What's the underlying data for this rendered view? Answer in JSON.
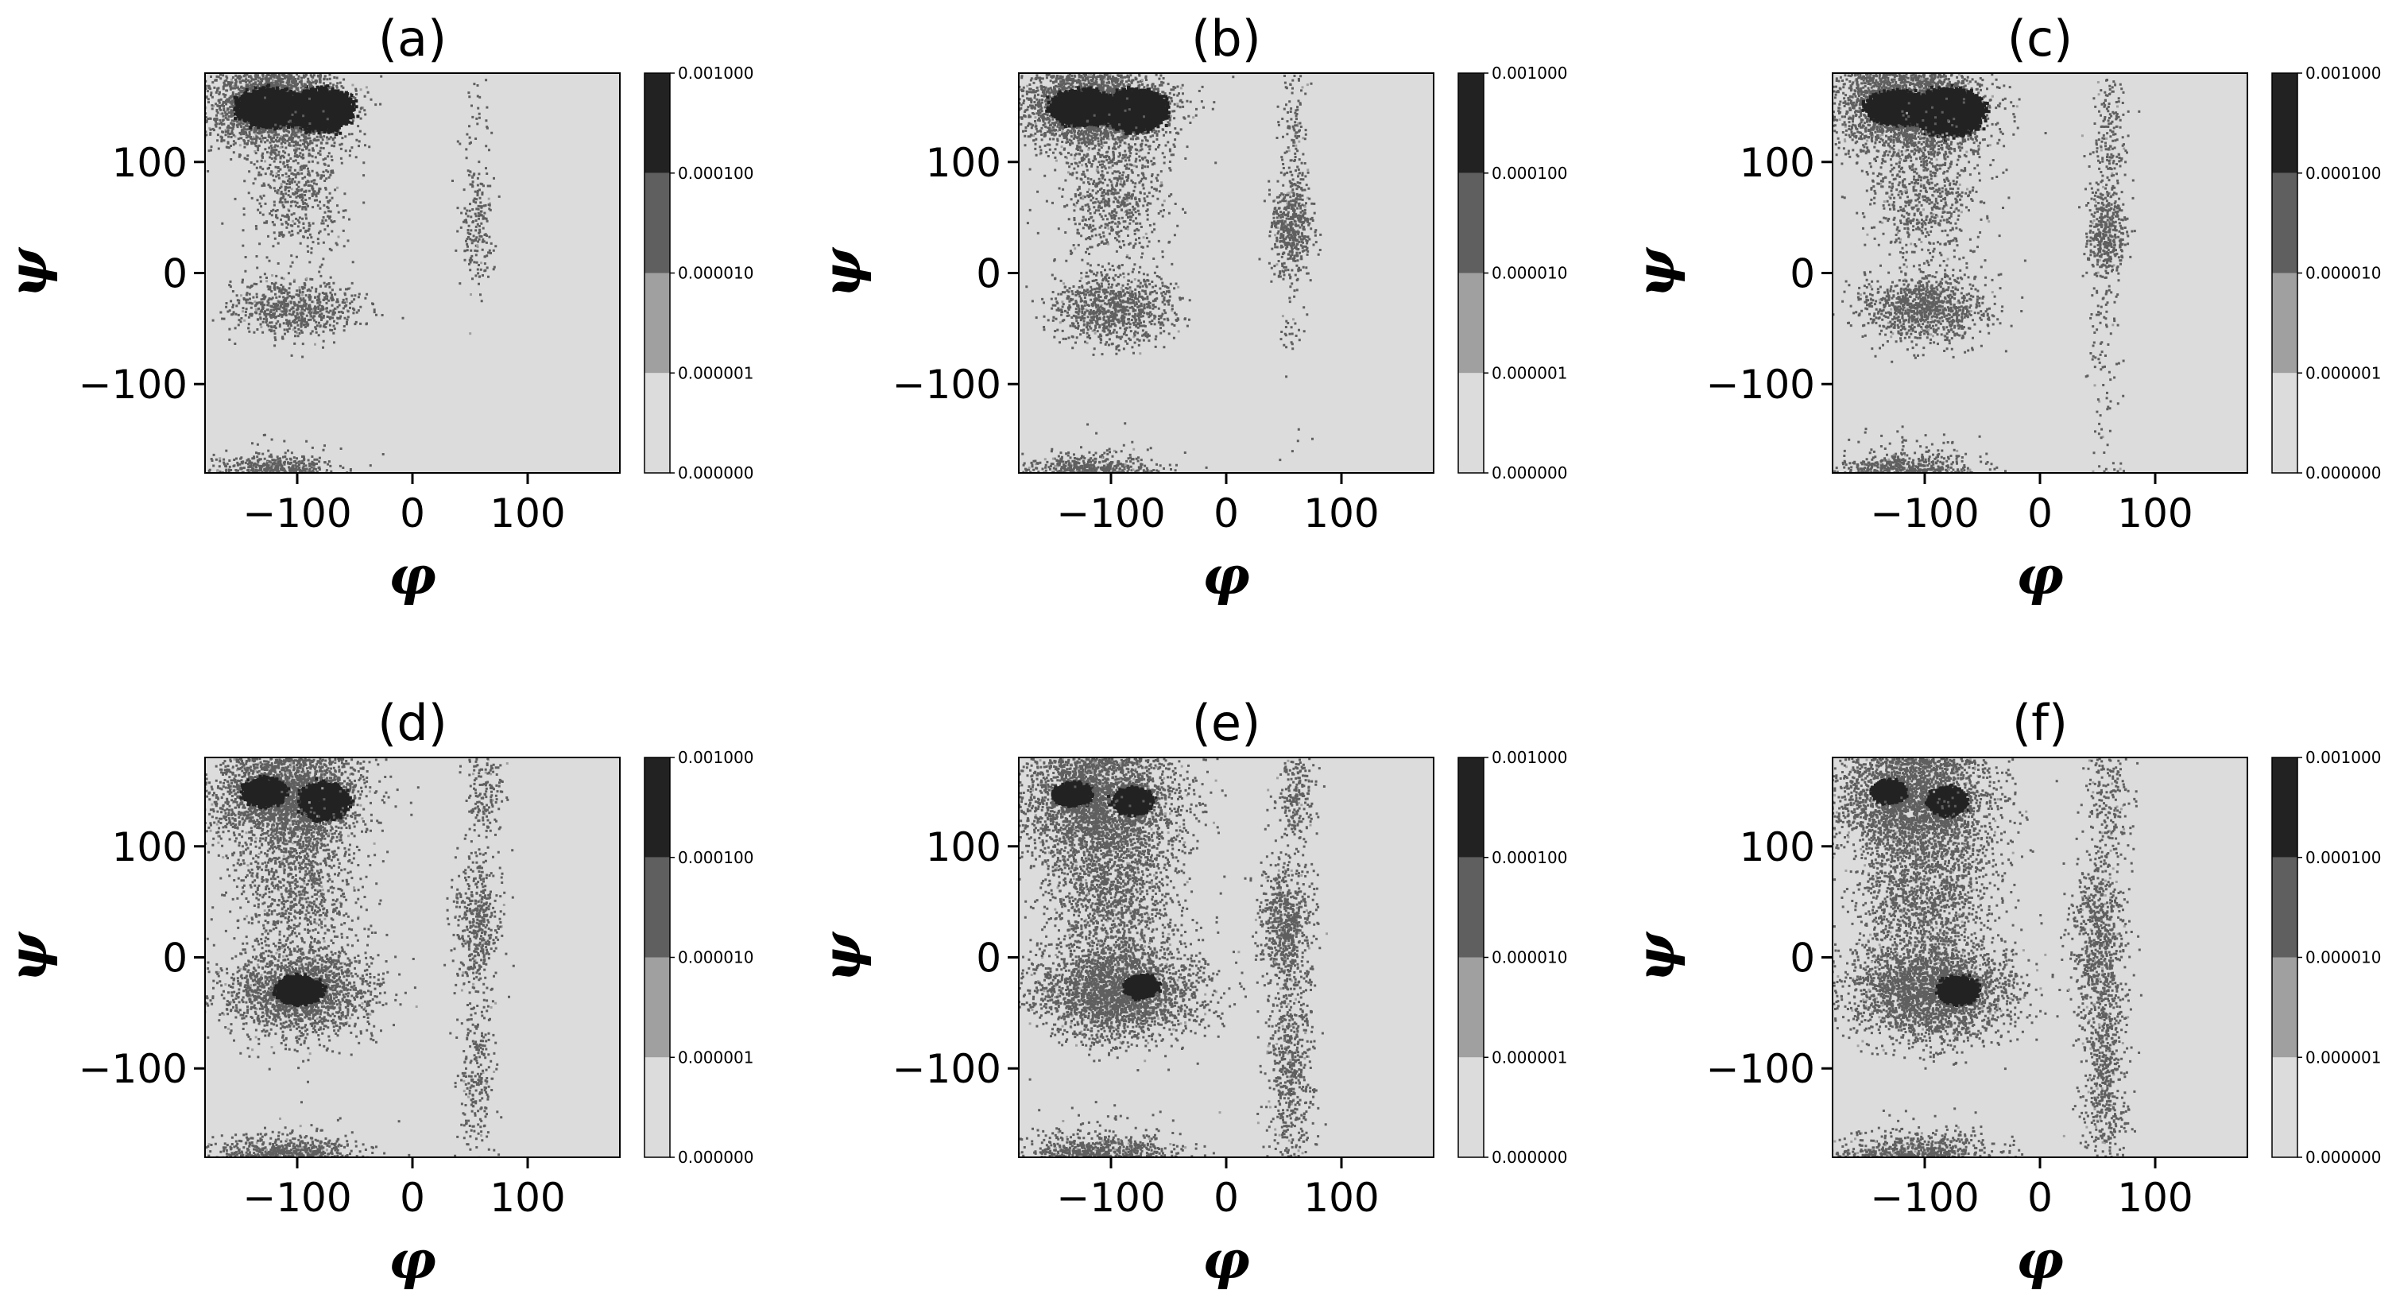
{
  "colors": {
    "background_level": "#dcdcdc",
    "level_1": "#a0a0a0",
    "level_2": "#5f5f5f",
    "level_3": "#222222",
    "frame": "#000000"
  },
  "chart_data": [
    {
      "type": "heatmap",
      "title": "(a)",
      "xlabel": "φ",
      "ylabel": "ψ",
      "xlim": [
        -180,
        180
      ],
      "ylim": [
        -180,
        180
      ],
      "xticks": [
        -100,
        0,
        100
      ],
      "yticks": [
        -100,
        0,
        100
      ],
      "xtick_labels": [
        "−100",
        "0",
        "100"
      ],
      "ytick_labels": [
        "−100",
        "0",
        "100"
      ],
      "colorbar": {
        "scale": "log",
        "levels": [
          0.0,
          1e-06,
          1e-05,
          0.0001,
          0.001
        ],
        "labels": [
          "0.000000",
          "0.000001",
          "0.000010",
          "0.000100",
          "0.001000"
        ]
      },
      "regions": [
        {
          "phi": -120,
          "psi": 150,
          "sphi": 30,
          "spsi": 20,
          "n": 2600,
          "core": [
            {
              "phi": -125,
              "psi": 150,
              "rx": 28,
              "ry": 16
            },
            {
              "phi": -80,
              "psi": 148,
              "rx": 26,
              "ry": 18
            }
          ]
        },
        {
          "phi": -100,
          "psi": 75,
          "sphi": 20,
          "spsi": 30,
          "n": 500
        },
        {
          "phi": -105,
          "psi": -30,
          "sphi": 28,
          "spsi": 14,
          "n": 700
        },
        {
          "phi": -120,
          "psi": -175,
          "sphi": 25,
          "spsi": 6,
          "n": 260
        },
        {
          "phi": 55,
          "psi": 40,
          "sphi": 8,
          "spsi": 28,
          "n": 170
        },
        {
          "phi": 55,
          "psi": 110,
          "sphi": 6,
          "spsi": 40,
          "n": 50
        }
      ]
    },
    {
      "type": "heatmap",
      "title": "(b)",
      "xlabel": "φ",
      "ylabel": "ψ",
      "xlim": [
        -180,
        180
      ],
      "ylim": [
        -180,
        180
      ],
      "xticks": [
        -100,
        0,
        100
      ],
      "yticks": [
        -100,
        0,
        100
      ],
      "xtick_labels": [
        "−100",
        "0",
        "100"
      ],
      "ytick_labels": [
        "−100",
        "0",
        "100"
      ],
      "colorbar": {
        "scale": "log",
        "levels": [
          0.0,
          1e-06,
          1e-05,
          0.0001,
          0.001
        ],
        "labels": [
          "0.000000",
          "0.000001",
          "0.000010",
          "0.000100",
          "0.001000"
        ]
      },
      "regions": [
        {
          "phi": -115,
          "psi": 150,
          "sphi": 32,
          "spsi": 20,
          "n": 2800,
          "core": [
            {
              "phi": -125,
              "psi": 150,
              "rx": 28,
              "ry": 15
            },
            {
              "phi": -80,
              "psi": 148,
              "rx": 26,
              "ry": 18
            }
          ]
        },
        {
          "phi": -100,
          "psi": 70,
          "sphi": 24,
          "spsi": 32,
          "n": 700
        },
        {
          "phi": -100,
          "psi": -32,
          "sphi": 28,
          "spsi": 16,
          "n": 900
        },
        {
          "phi": -120,
          "psi": -175,
          "sphi": 26,
          "spsi": 6,
          "n": 300
        },
        {
          "phi": 55,
          "psi": 40,
          "sphi": 9,
          "spsi": 18,
          "n": 420
        },
        {
          "phi": 58,
          "psi": 100,
          "sphi": 7,
          "spsi": 50,
          "n": 200
        },
        {
          "phi": 55,
          "psi": -40,
          "sphi": 6,
          "spsi": 30,
          "n": 40
        }
      ]
    },
    {
      "type": "heatmap",
      "title": "(c)",
      "xlabel": "φ",
      "ylabel": "ψ",
      "xlim": [
        -180,
        180
      ],
      "ylim": [
        -180,
        180
      ],
      "xticks": [
        -100,
        0,
        100
      ],
      "yticks": [
        -100,
        0,
        100
      ],
      "xtick_labels": [
        "−100",
        "0",
        "100"
      ],
      "ytick_labels": [
        "−100",
        "0",
        "100"
      ],
      "colorbar": {
        "scale": "log",
        "levels": [
          0.0,
          1e-06,
          1e-05,
          0.0001,
          0.001
        ],
        "labels": [
          "0.000000",
          "0.000001",
          "0.000010",
          "0.000100",
          "0.001000"
        ]
      },
      "regions": [
        {
          "phi": -115,
          "psi": 150,
          "sphi": 32,
          "spsi": 22,
          "n": 2800,
          "core": [
            {
              "phi": -125,
              "psi": 150,
              "rx": 26,
              "ry": 14
            },
            {
              "phi": -80,
              "psi": 146,
              "rx": 28,
              "ry": 20
            }
          ]
        },
        {
          "phi": -100,
          "psi": 70,
          "sphi": 24,
          "spsi": 32,
          "n": 700
        },
        {
          "phi": -100,
          "psi": -30,
          "sphi": 28,
          "spsi": 16,
          "n": 1000
        },
        {
          "phi": -120,
          "psi": -175,
          "sphi": 26,
          "spsi": 6,
          "n": 300
        },
        {
          "phi": 55,
          "psi": 35,
          "sphi": 9,
          "spsi": 22,
          "n": 400
        },
        {
          "phi": 60,
          "psi": 120,
          "sphi": 8,
          "spsi": 40,
          "n": 220
        },
        {
          "phi": 55,
          "psi": -70,
          "sphi": 7,
          "spsi": 40,
          "n": 80
        }
      ]
    },
    {
      "type": "heatmap",
      "title": "(d)",
      "xlabel": "φ",
      "ylabel": "ψ",
      "xlim": [
        -180,
        180
      ],
      "ylim": [
        -180,
        180
      ],
      "xticks": [
        -100,
        0,
        100
      ],
      "yticks": [
        -100,
        0,
        100
      ],
      "xtick_labels": [
        "−100",
        "0",
        "100"
      ],
      "ytick_labels": [
        "−100",
        "0",
        "100"
      ],
      "colorbar": {
        "scale": "log",
        "levels": [
          0.0,
          1e-06,
          1e-05,
          0.0001,
          0.001
        ],
        "labels": [
          "0.000000",
          "0.000001",
          "0.000010",
          "0.000100",
          "0.001000"
        ]
      },
      "regions": [
        {
          "phi": -110,
          "psi": 145,
          "sphi": 34,
          "spsi": 24,
          "n": 2600,
          "core": [
            {
              "phi": -130,
              "psi": 150,
              "rx": 18,
              "ry": 12
            },
            {
              "phi": -78,
              "psi": 142,
              "rx": 20,
              "ry": 16
            }
          ]
        },
        {
          "phi": -100,
          "psi": 65,
          "sphi": 26,
          "spsi": 34,
          "n": 900
        },
        {
          "phi": -100,
          "psi": -30,
          "sphi": 32,
          "spsi": 20,
          "n": 2000,
          "core": [
            {
              "phi": -100,
              "psi": -28,
              "rx": 20,
              "ry": 12
            }
          ]
        },
        {
          "phi": -110,
          "psi": -175,
          "sphi": 30,
          "spsi": 7,
          "n": 400
        },
        {
          "phi": 55,
          "psi": 35,
          "sphi": 10,
          "spsi": 30,
          "n": 450
        },
        {
          "phi": 62,
          "psi": 150,
          "sphi": 8,
          "spsi": 20,
          "n": 150
        },
        {
          "phi": 55,
          "psi": -100,
          "sphi": 8,
          "spsi": 45,
          "n": 250
        }
      ]
    },
    {
      "type": "heatmap",
      "title": "(e)",
      "xlabel": "φ",
      "ylabel": "ψ",
      "xlim": [
        -180,
        180
      ],
      "ylim": [
        -180,
        180
      ],
      "xticks": [
        -100,
        0,
        100
      ],
      "yticks": [
        -100,
        0,
        100
      ],
      "xtick_labels": [
        "−100",
        "0",
        "100"
      ],
      "ytick_labels": [
        "−100",
        "0",
        "100"
      ],
      "colorbar": {
        "scale": "log",
        "levels": [
          0.0,
          1e-06,
          1e-05,
          0.0001,
          0.001
        ],
        "labels": [
          "0.000000",
          "0.000001",
          "0.000010",
          "0.000100",
          "0.001000"
        ]
      },
      "regions": [
        {
          "phi": -110,
          "psi": 140,
          "sphi": 36,
          "spsi": 28,
          "n": 2800,
          "core": [
            {
              "phi": -135,
              "psi": 148,
              "rx": 16,
              "ry": 10
            },
            {
              "phi": -82,
              "psi": 142,
              "rx": 16,
              "ry": 12
            }
          ]
        },
        {
          "phi": -100,
          "psi": 60,
          "sphi": 30,
          "spsi": 36,
          "n": 1400
        },
        {
          "phi": -95,
          "psi": -30,
          "sphi": 36,
          "spsi": 22,
          "n": 2600,
          "core": [
            {
              "phi": -75,
              "psi": -25,
              "rx": 14,
              "ry": 10
            }
          ]
        },
        {
          "phi": -110,
          "psi": -175,
          "sphi": 34,
          "spsi": 8,
          "n": 500
        },
        {
          "phi": 50,
          "psi": 30,
          "sphi": 12,
          "spsi": 30,
          "n": 650
        },
        {
          "phi": 60,
          "psi": 140,
          "sphi": 9,
          "spsi": 24,
          "n": 200
        },
        {
          "phi": 55,
          "psi": -100,
          "sphi": 10,
          "spsi": 50,
          "n": 600
        }
      ]
    },
    {
      "type": "heatmap",
      "title": "(f)",
      "xlabel": "φ",
      "ylabel": "ψ",
      "xlim": [
        -180,
        180
      ],
      "ylim": [
        -180,
        180
      ],
      "xticks": [
        -100,
        0,
        100
      ],
      "yticks": [
        -100,
        0,
        100
      ],
      "xtick_labels": [
        "−100",
        "0",
        "100"
      ],
      "ytick_labels": [
        "−100",
        "0",
        "100"
      ],
      "colorbar": {
        "scale": "log",
        "levels": [
          0.0,
          1e-06,
          1e-05,
          0.0001,
          0.001
        ],
        "labels": [
          "0.000000",
          "0.000001",
          "0.000010",
          "0.000100",
          "0.001000"
        ]
      },
      "regions": [
        {
          "phi": -110,
          "psi": 140,
          "sphi": 36,
          "spsi": 28,
          "n": 2800,
          "core": [
            {
              "phi": -132,
              "psi": 150,
              "rx": 14,
              "ry": 10
            },
            {
              "phi": -82,
              "psi": 142,
              "rx": 16,
              "ry": 12
            }
          ]
        },
        {
          "phi": -100,
          "psi": 60,
          "sphi": 30,
          "spsi": 36,
          "n": 1400
        },
        {
          "phi": -95,
          "psi": -30,
          "sphi": 36,
          "spsi": 22,
          "n": 2600,
          "core": [
            {
              "phi": -72,
              "psi": -28,
              "rx": 16,
              "ry": 12
            }
          ]
        },
        {
          "phi": -110,
          "psi": -175,
          "sphi": 34,
          "spsi": 8,
          "n": 500
        },
        {
          "phi": 50,
          "psi": 20,
          "sphi": 12,
          "spsi": 40,
          "n": 700
        },
        {
          "phi": 60,
          "psi": 140,
          "sphi": 9,
          "spsi": 24,
          "n": 160
        },
        {
          "phi": 55,
          "psi": -100,
          "sphi": 10,
          "spsi": 50,
          "n": 600
        }
      ]
    }
  ]
}
